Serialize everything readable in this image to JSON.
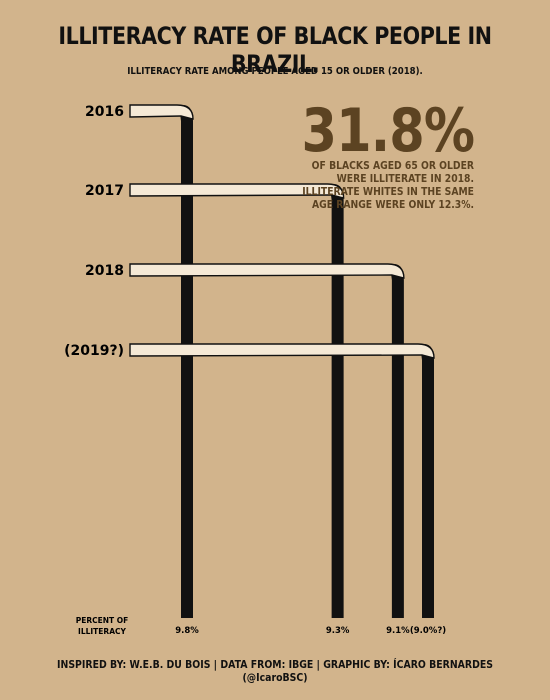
{
  "title": "ILLITERACY RATE OF BLACK PEOPLE IN BRAZIL.",
  "subtitle": "ILLITERACY RATE AMONG PEOPLE AGED 15 OR OLDER (2018).",
  "callout": {
    "value": "31.8%",
    "text": "OF BLACKS AGED 65 OR OLDER WERE ILLITERATE IN 2018. ILLITERATE WHITES IN THE SAME AGE RANGE WERE ONLY 12.3%."
  },
  "bottom_label_line1": "PERCENT OF",
  "bottom_label_line2": "ILLITERACY",
  "footer": "INSPIRED BY: W.E.B. DU BOIS | DATA FROM: IBGE | GRAPHIC BY: ÍCARO BERNARDES (@IcaroBSC)",
  "colors": {
    "background": "#d2b48c",
    "bar": "#111111",
    "ribbon_fill": "#f5e9d6",
    "callout": "#5c4322"
  },
  "chart_data": {
    "type": "bar",
    "style": "du-bois-spiral",
    "categories": [
      "2016",
      "2017",
      "2018",
      "(2019?)"
    ],
    "values": [
      9.8,
      9.3,
      9.1,
      9.0
    ],
    "value_labels": [
      "9.8%",
      "9.3%",
      "9.1%",
      "(9.0%?)"
    ],
    "title": "ILLITERACY RATE OF BLACK PEOPLE IN BRAZIL.",
    "xlabel": "PERCENT OF ILLITERACY",
    "ylabel": ""
  }
}
